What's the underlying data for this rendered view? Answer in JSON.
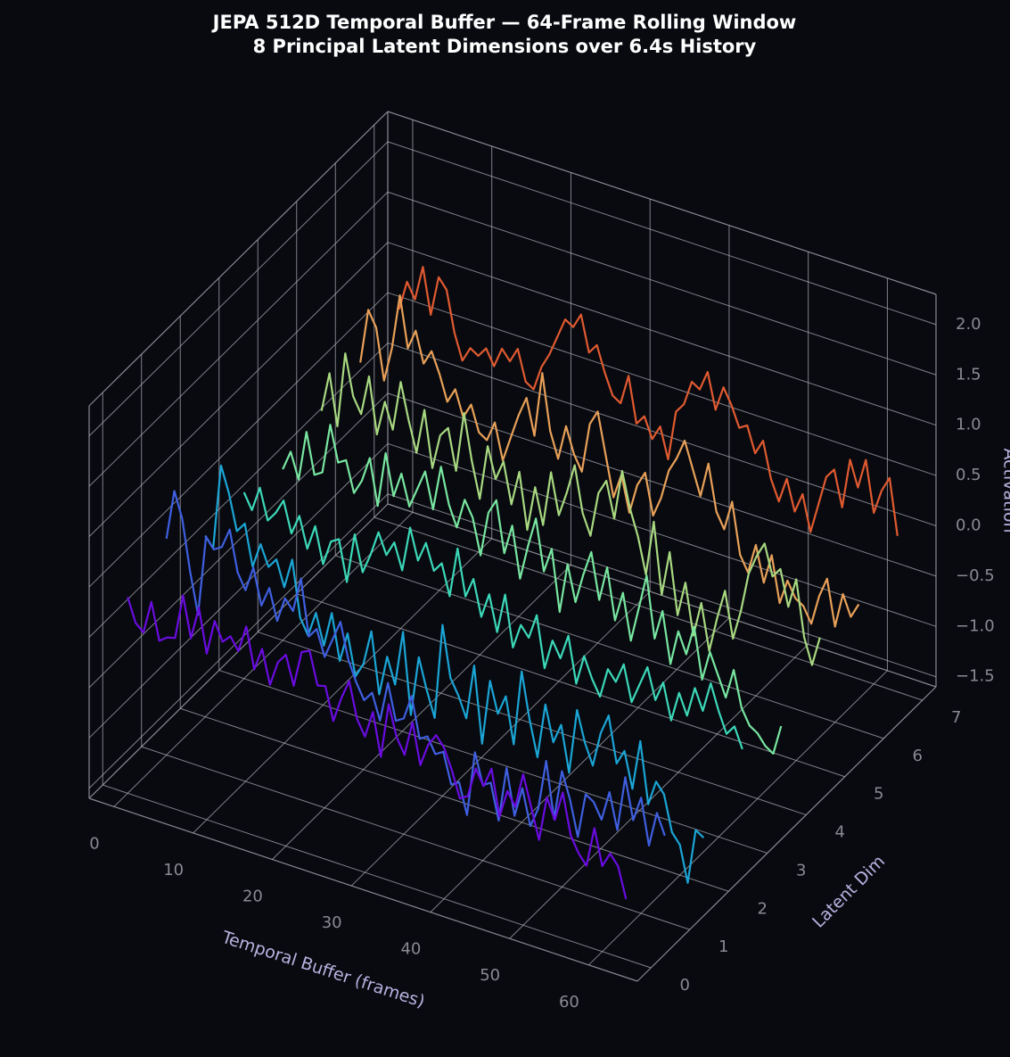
{
  "chart_data": {
    "type": "line3d",
    "title": "JEPA 512D Temporal Buffer — 64-Frame Rolling Window",
    "subtitle": "8 Principal Latent Dimensions over 6.4s History",
    "xlabel": "Temporal Buffer (frames)",
    "ylabel": "Latent Dim",
    "zlabel": "Activation",
    "x": [
      0,
      1,
      2,
      3,
      4,
      5,
      6,
      7,
      8,
      9,
      10,
      11,
      12,
      13,
      14,
      15,
      16,
      17,
      18,
      19,
      20,
      21,
      22,
      23,
      24,
      25,
      26,
      27,
      28,
      29,
      30,
      31,
      32,
      33,
      34,
      35,
      36,
      37,
      38,
      39,
      40,
      41,
      42,
      43,
      44,
      45,
      46,
      47,
      48,
      49,
      50,
      51,
      52,
      53,
      54,
      55,
      56,
      57,
      58,
      59,
      60,
      61,
      62,
      63
    ],
    "xlim": [
      -3.15,
      66.15
    ],
    "ylim": [
      -0.35,
      7.35
    ],
    "zlim": [
      -1.6,
      2.3
    ],
    "xticks": [
      0,
      10,
      20,
      30,
      40,
      50,
      60
    ],
    "yticks": [
      0,
      1,
      2,
      3,
      4,
      5,
      6,
      7
    ],
    "zticks": [
      {
        "value": -1.5,
        "label": "−1.5"
      },
      {
        "value": -1,
        "label": "−1.0"
      },
      {
        "value": -0.5,
        "label": "−0.5"
      },
      {
        "value": 0,
        "label": "0.0"
      },
      0.5,
      {
        "value": 1,
        "label": "1.0"
      },
      1.5,
      {
        "value": 2,
        "label": "2.0"
      }
    ],
    "grid": true,
    "series": [
      {
        "y": 0,
        "color": "#6a0ce0",
        "values": [
          0.35,
          0.12,
          0.05,
          0.38,
          0.02,
          0.08,
          0.1,
          0.55,
          0.15,
          0.48,
          0.05,
          0.4,
          0.22,
          0.3,
          0.18,
          0.45,
          0.05,
          0.28,
          -0.05,
          0.2,
          0.3,
          0.02,
          0.38,
          0.42,
          0.1,
          0.12,
          -0.2,
          0.05,
          0.25,
          -0.1,
          -0.25,
          0.02,
          -0.4,
          0.15,
          -0.15,
          -0.3,
          0.05,
          -0.35,
          -0.12,
          0.0,
          -0.1,
          -0.3,
          -0.55,
          -0.5,
          -0.2,
          -0.35,
          -0.15,
          -0.6,
          -0.32,
          -0.45,
          -0.1,
          -0.4,
          -0.7,
          -0.25,
          -0.45,
          -0.15,
          -0.55,
          -0.7,
          -0.8,
          -0.4,
          -0.75,
          -0.6,
          -0.7,
          -1.0
        ]
      },
      {
        "y": 1,
        "color": "#3f5fe0",
        "values": [
          0.55,
          1.05,
          0.8,
          0.3,
          -0.1,
          0.7,
          0.6,
          0.65,
          0.85,
          0.45,
          0.3,
          0.55,
          0.2,
          0.4,
          0.1,
          0.35,
          0.25,
          0.6,
          0.05,
          0.15,
          -0.1,
          0.1,
          0.3,
          -0.05,
          -0.25,
          -0.4,
          -0.3,
          -0.55,
          -0.15,
          -0.5,
          -0.45,
          -0.2,
          -0.6,
          -0.55,
          -0.7,
          -0.65,
          -0.95,
          -0.9,
          -1.2,
          -0.55,
          -0.85,
          -0.8,
          -1.15,
          -0.6,
          -1.05,
          -0.75,
          -1.1,
          -0.9,
          -0.4,
          -0.95,
          -0.45,
          -0.7,
          -1.05,
          -0.6,
          -0.65,
          -0.8,
          -0.5,
          -0.85,
          -0.3,
          -0.7,
          -0.45,
          -0.9,
          -0.55,
          -0.75
        ]
      },
      {
        "y": 2,
        "color": "#1ba5d5",
        "values": [
          0.2,
          0.1,
          0.95,
          0.7,
          0.35,
          0.45,
          0.05,
          0.3,
          0.1,
          0.2,
          -0.05,
          0.25,
          -0.3,
          -0.45,
          -0.2,
          -0.5,
          -0.15,
          -0.6,
          -0.3,
          -0.7,
          -0.55,
          -0.2,
          -0.8,
          -0.4,
          -0.65,
          -0.1,
          -0.9,
          -0.3,
          -0.6,
          -0.85,
          0.1,
          -0.4,
          -0.55,
          -0.75,
          -0.2,
          -0.95,
          -0.3,
          -0.6,
          -0.4,
          -0.85,
          -0.1,
          -0.55,
          -0.9,
          -0.35,
          -0.7,
          -0.5,
          -0.95,
          -0.3,
          -0.6,
          -0.8,
          -0.45,
          -0.25,
          -0.7,
          -0.55,
          -0.9,
          -0.4,
          -1.0,
          -0.75,
          -0.85,
          -1.2,
          -1.3,
          -1.65,
          -1.1,
          -1.15
        ]
      },
      {
        "y": 3,
        "color": "#3cd8b8",
        "values": [
          0.25,
          0.1,
          0.35,
          0.05,
          0.15,
          0.3,
          0.0,
          0.2,
          -0.1,
          0.15,
          -0.2,
          0.05,
          0.1,
          -0.3,
          0.2,
          -0.15,
          0.05,
          0.3,
          0.1,
          0.25,
          0.0,
          0.45,
          0.15,
          0.35,
          0.1,
          0.2,
          -0.1,
          0.4,
          -0.05,
          0.15,
          -0.2,
          0.05,
          -0.3,
          0.1,
          -0.4,
          -0.15,
          -0.25,
          0.0,
          -0.5,
          -0.2,
          -0.35,
          -0.1,
          -0.55,
          -0.25,
          -0.45,
          -0.6,
          -0.3,
          -0.4,
          -0.2,
          -0.55,
          -0.35,
          -0.15,
          -0.45,
          -0.25,
          -0.6,
          -0.3,
          -0.5,
          -0.2,
          -0.4,
          -0.1,
          -0.35,
          -0.55,
          -0.45,
          -0.65
        ]
      },
      {
        "y": 4,
        "color": "#78e6a0",
        "values": [
          0.1,
          0.3,
          0.05,
          0.55,
          0.15,
          0.2,
          0.7,
          0.35,
          0.4,
          0.1,
          0.25,
          0.5,
          0.05,
          0.6,
          0.2,
          0.45,
          0.15,
          0.35,
          0.55,
          0.2,
          0.65,
          0.3,
          0.1,
          0.4,
          0.25,
          -0.1,
          0.35,
          0.5,
          0.0,
          0.3,
          -0.2,
          0.15,
          0.45,
          -0.05,
          0.2,
          -0.4,
          0.1,
          -0.25,
          0.05,
          0.3,
          -0.15,
          0.2,
          -0.3,
          0.0,
          -0.45,
          -0.1,
          0.25,
          -0.35,
          -0.05,
          -0.55,
          -0.2,
          -0.4,
          -0.1,
          -0.6,
          -0.3,
          -0.5,
          -0.7,
          -0.4,
          -0.75,
          -0.9,
          -0.95,
          -1.05,
          -1.1,
          -0.8
        ]
      },
      {
        "y": 5,
        "color": "#a8d880",
        "values": [
          0.3,
          0.7,
          0.2,
          0.95,
          0.55,
          0.4,
          0.8,
          0.25,
          0.6,
          0.35,
          0.85,
          0.5,
          0.2,
          0.65,
          0.1,
          0.45,
          0.55,
          0.15,
          0.75,
          0.3,
          -0.05,
          0.5,
          0.2,
          0.4,
          0.0,
          0.35,
          -0.2,
          0.25,
          -0.1,
          0.45,
          0.05,
          0.3,
          0.6,
          0.15,
          -0.05,
          0.4,
          0.55,
          0.2,
          0.7,
          0.35,
          0.1,
          -0.25,
          0.3,
          -0.4,
          0.05,
          -0.55,
          -0.2,
          -0.7,
          -0.35,
          -0.8,
          -0.45,
          -0.15,
          -0.6,
          -0.3,
          0.1,
          0.3,
          0.45,
          0.15,
          0.25,
          -0.1,
          0.2,
          -0.35,
          -0.6,
          -0.3
        ]
      },
      {
        "y": 6,
        "color": "#e8a058",
        "values": [
          0.4,
          0.95,
          0.8,
          0.3,
          0.65,
          1.2,
          0.7,
          0.9,
          0.6,
          0.75,
          0.55,
          0.3,
          0.45,
          0.2,
          0.35,
          0.1,
          0.05,
          0.25,
          -0.1,
          0.15,
          0.4,
          0.6,
          0.25,
          0.9,
          0.35,
          0.1,
          0.45,
          0.2,
          0.05,
          0.55,
          0.7,
          0.3,
          -0.1,
          0.15,
          -0.2,
          0.1,
          0.25,
          -0.15,
          0.05,
          0.35,
          0.5,
          0.7,
          0.45,
          0.2,
          0.55,
          0.1,
          -0.05,
          0.25,
          -0.25,
          -0.4,
          -0.1,
          -0.45,
          -0.15,
          -0.6,
          -0.35,
          -0.5,
          -0.55,
          -0.7,
          -0.4,
          -0.2,
          -0.65,
          -0.3,
          -0.5,
          -0.35
        ]
      },
      {
        "y": 7,
        "color": "#e05a30",
        "values": [
          0.55,
          0.85,
          0.7,
          1.05,
          0.6,
          1.0,
          0.9,
          0.5,
          0.25,
          0.4,
          0.35,
          0.45,
          0.3,
          0.5,
          0.4,
          0.55,
          0.25,
          0.2,
          0.45,
          0.6,
          0.8,
          1.0,
          0.95,
          1.1,
          0.75,
          0.85,
          0.6,
          0.4,
          0.35,
          0.65,
          0.2,
          0.3,
          0.1,
          0.25,
          -0.05,
          0.45,
          0.55,
          0.8,
          0.75,
          0.95,
          0.6,
          0.85,
          0.7,
          0.5,
          0.55,
          0.3,
          0.45,
          0.1,
          -0.1,
          0.15,
          -0.15,
          0.05,
          -0.3,
          0.0,
          0.3,
          0.4,
          0.05,
          0.55,
          0.3,
          0.6,
          0.1,
          0.35,
          0.5,
          -0.05
        ]
      }
    ]
  }
}
